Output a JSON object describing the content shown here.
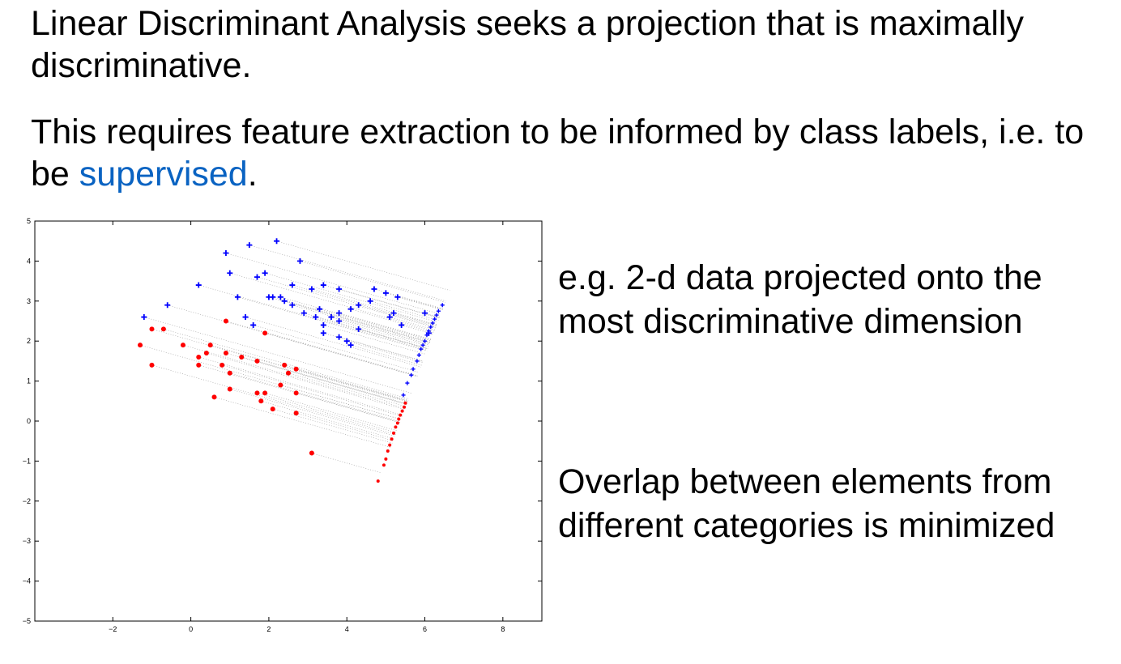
{
  "slide": {
    "paragraph1": "Linear Discriminant Analysis seeks a projection that is maximally discriminative.",
    "paragraph2_before": "This requires feature extraction to be informed by class labels, i.e. to be ",
    "paragraph2_highlight": "supervised",
    "paragraph2_after": ".",
    "note1": "e.g. 2-d data projected onto the most discriminative dimension",
    "note2": "Overlap between elements from different categories is minimized",
    "accent_color": "#0a63c2"
  },
  "chart_data": {
    "type": "scatter",
    "title": "",
    "xlabel": "",
    "ylabel": "",
    "xlim": [
      -4,
      9
    ],
    "ylim": [
      -5,
      5
    ],
    "xticks": [
      -2,
      0,
      2,
      4,
      6,
      8
    ],
    "yticks": [
      5,
      4,
      3,
      2,
      1,
      0,
      -1,
      -2,
      -3,
      -4,
      -5
    ],
    "xtick_labels": [
      "−2",
      "0",
      "2",
      "4",
      "6",
      "8"
    ],
    "ytick_labels": [
      "5",
      "4",
      "3",
      "2",
      "1",
      "0",
      "−1",
      "−2",
      "−3",
      "−4",
      "−5"
    ],
    "grid": false,
    "legend": "none",
    "projection_line": {
      "from": [
        4.8,
        -1.5
      ],
      "to": [
        6.5,
        2.9
      ]
    },
    "series": [
      {
        "name": "class-blue",
        "marker": "plus",
        "color": "#0000ff",
        "points": [
          [
            0.9,
            4.2
          ],
          [
            1.5,
            4.4
          ],
          [
            2.2,
            4.5
          ],
          [
            2.8,
            4.0
          ],
          [
            1.0,
            3.7
          ],
          [
            1.7,
            3.6
          ],
          [
            1.9,
            3.7
          ],
          [
            2.1,
            3.1
          ],
          [
            2.3,
            3.1
          ],
          [
            2.6,
            3.4
          ],
          [
            3.1,
            3.3
          ],
          [
            3.4,
            3.4
          ],
          [
            3.8,
            3.3
          ],
          [
            4.7,
            3.3
          ],
          [
            5.0,
            3.2
          ],
          [
            5.3,
            3.1
          ],
          [
            0.2,
            3.4
          ],
          [
            1.2,
            3.1
          ],
          [
            2.6,
            2.9
          ],
          [
            2.9,
            2.7
          ],
          [
            3.2,
            2.6
          ],
          [
            3.6,
            2.6
          ],
          [
            3.8,
            2.7
          ],
          [
            4.1,
            2.8
          ],
          [
            4.3,
            2.9
          ],
          [
            -0.6,
            2.9
          ],
          [
            -1.2,
            2.6
          ],
          [
            1.4,
            2.6
          ],
          [
            1.6,
            2.4
          ],
          [
            3.4,
            2.4
          ],
          [
            3.8,
            2.5
          ],
          [
            4.3,
            2.3
          ],
          [
            5.1,
            2.6
          ],
          [
            5.4,
            2.4
          ],
          [
            6.0,
            2.7
          ],
          [
            3.4,
            2.2
          ],
          [
            3.8,
            2.1
          ],
          [
            4.0,
            2.0
          ],
          [
            4.1,
            1.9
          ],
          [
            2.0,
            3.1
          ],
          [
            2.4,
            3.0
          ],
          [
            3.3,
            2.8
          ],
          [
            5.2,
            2.7
          ],
          [
            6.1,
            2.2
          ],
          [
            4.6,
            3.0
          ]
        ]
      },
      {
        "name": "class-red",
        "marker": "dot",
        "color": "#ff0000",
        "points": [
          [
            -1.3,
            1.9
          ],
          [
            -1.0,
            1.4
          ],
          [
            -1.0,
            2.3
          ],
          [
            -0.7,
            2.3
          ],
          [
            -0.2,
            1.9
          ],
          [
            0.2,
            1.6
          ],
          [
            0.2,
            1.4
          ],
          [
            0.4,
            1.7
          ],
          [
            0.5,
            1.9
          ],
          [
            0.8,
            1.4
          ],
          [
            0.9,
            1.7
          ],
          [
            0.9,
            2.5
          ],
          [
            1.0,
            1.2
          ],
          [
            1.0,
            0.8
          ],
          [
            1.3,
            1.6
          ],
          [
            1.7,
            1.5
          ],
          [
            1.7,
            0.7
          ],
          [
            1.8,
            0.5
          ],
          [
            1.9,
            0.7
          ],
          [
            1.9,
            2.2
          ],
          [
            2.1,
            0.3
          ],
          [
            2.3,
            0.9
          ],
          [
            2.4,
            1.4
          ],
          [
            2.5,
            1.2
          ],
          [
            2.7,
            0.7
          ],
          [
            2.7,
            0.2
          ],
          [
            2.7,
            1.3
          ],
          [
            0.6,
            0.6
          ],
          [
            3.1,
            -0.8
          ]
        ]
      },
      {
        "name": "projected-blue",
        "marker": "plus-small",
        "color": "#0000ff",
        "points": [
          [
            5.45,
            0.65
          ],
          [
            5.55,
            0.95
          ],
          [
            5.65,
            1.15
          ],
          [
            5.7,
            1.3
          ],
          [
            5.8,
            1.5
          ],
          [
            5.85,
            1.65
          ],
          [
            5.9,
            1.8
          ],
          [
            5.95,
            1.9
          ],
          [
            6.0,
            2.0
          ],
          [
            6.05,
            2.15
          ],
          [
            6.1,
            2.25
          ],
          [
            6.15,
            2.35
          ],
          [
            6.2,
            2.45
          ],
          [
            6.25,
            2.55
          ],
          [
            6.3,
            2.65
          ],
          [
            6.35,
            2.75
          ],
          [
            6.45,
            2.9
          ]
        ]
      },
      {
        "name": "projected-red",
        "marker": "dot-small",
        "color": "#ff0000",
        "points": [
          [
            4.8,
            -1.5
          ],
          [
            4.95,
            -1.1
          ],
          [
            5.0,
            -0.95
          ],
          [
            5.05,
            -0.75
          ],
          [
            5.1,
            -0.6
          ],
          [
            5.15,
            -0.45
          ],
          [
            5.2,
            -0.3
          ],
          [
            5.25,
            -0.15
          ],
          [
            5.3,
            -0.05
          ],
          [
            5.33,
            0.05
          ],
          [
            5.37,
            0.15
          ],
          [
            5.42,
            0.25
          ],
          [
            5.47,
            0.35
          ],
          [
            5.5,
            0.45
          ]
        ]
      }
    ]
  }
}
